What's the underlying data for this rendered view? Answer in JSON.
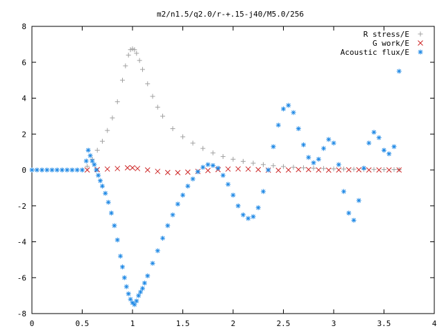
{
  "chart_data": {
    "type": "scatter",
    "title": "m2/n1.5/q2.0/r-+.15-j40/M5.0/256",
    "xlabel": "",
    "ylabel": "",
    "xlim": [
      0,
      4
    ],
    "ylim": [
      -8,
      8
    ],
    "x_ticks": [
      "0",
      "0.5",
      "1",
      "1.5",
      "2",
      "2.5",
      "3",
      "3.5",
      "4"
    ],
    "y_ticks": [
      "8",
      "6",
      "4",
      "2",
      "0",
      "-2",
      "-4",
      "-6",
      "-8"
    ],
    "grid": false,
    "legend_position": "top-right",
    "series": [
      {
        "name": "R stress/E",
        "marker": "+",
        "color": "#a0a0a0",
        "x": [
          0.55,
          0.6,
          0.65,
          0.7,
          0.75,
          0.8,
          0.85,
          0.9,
          0.93,
          0.96,
          0.98,
          1.0,
          1.02,
          1.04,
          1.07,
          1.1,
          1.15,
          1.2,
          1.25,
          1.3,
          1.4,
          1.5,
          1.6,
          1.7,
          1.8,
          1.9,
          2.0,
          2.1,
          2.2,
          2.3,
          2.4,
          2.5,
          2.6,
          2.7,
          2.8,
          2.9,
          3.0,
          3.1,
          3.2,
          3.3,
          3.4,
          3.5,
          3.6,
          3.65
        ],
        "y": [
          0.2,
          0.6,
          1.1,
          1.6,
          2.2,
          2.9,
          3.8,
          5.0,
          5.8,
          6.4,
          6.7,
          6.75,
          6.7,
          6.5,
          6.1,
          5.6,
          4.8,
          4.1,
          3.5,
          3.0,
          2.3,
          1.85,
          1.5,
          1.2,
          0.95,
          0.75,
          0.6,
          0.48,
          0.38,
          0.3,
          0.24,
          0.19,
          0.15,
          0.12,
          0.1,
          0.08,
          0.06,
          0.05,
          0.04,
          0.03,
          0.03,
          0.02,
          0.02,
          0.02
        ]
      },
      {
        "name": "G work/E",
        "marker": "x",
        "color": "#cc2222",
        "x": [
          0.55,
          0.65,
          0.75,
          0.85,
          0.95,
          1.0,
          1.05,
          1.15,
          1.25,
          1.35,
          1.45,
          1.55,
          1.65,
          1.75,
          1.85,
          1.95,
          2.05,
          2.15,
          2.25,
          2.35,
          2.45,
          2.55,
          2.65,
          2.75,
          2.85,
          2.95,
          3.05,
          3.15,
          3.25,
          3.35,
          3.45,
          3.55,
          3.65
        ],
        "y": [
          0.0,
          0.02,
          0.05,
          0.08,
          0.12,
          0.12,
          0.08,
          0.0,
          -0.08,
          -0.14,
          -0.15,
          -0.12,
          -0.08,
          -0.03,
          0.02,
          0.05,
          0.06,
          0.05,
          0.02,
          -0.01,
          -0.02,
          0.0,
          0.02,
          0.02,
          0.0,
          -0.01,
          0.0,
          0.01,
          0.01,
          0.0,
          0.0,
          0.0,
          0.0
        ]
      },
      {
        "name": "Acoustic flux/E",
        "marker": "*",
        "color": "#1e88e5",
        "x": [
          0.0,
          0.05,
          0.1,
          0.15,
          0.2,
          0.25,
          0.3,
          0.35,
          0.4,
          0.45,
          0.5,
          0.54,
          0.56,
          0.58,
          0.6,
          0.62,
          0.64,
          0.66,
          0.68,
          0.7,
          0.73,
          0.76,
          0.79,
          0.82,
          0.85,
          0.88,
          0.9,
          0.92,
          0.94,
          0.96,
          0.98,
          1.0,
          1.02,
          1.04,
          1.06,
          1.08,
          1.1,
          1.12,
          1.15,
          1.2,
          1.25,
          1.3,
          1.35,
          1.4,
          1.45,
          1.5,
          1.55,
          1.6,
          1.65,
          1.7,
          1.75,
          1.8,
          1.85,
          1.9,
          1.95,
          2.0,
          2.05,
          2.1,
          2.15,
          2.2,
          2.25,
          2.3,
          2.35,
          2.4,
          2.45,
          2.5,
          2.55,
          2.6,
          2.65,
          2.7,
          2.75,
          2.8,
          2.85,
          2.9,
          2.95,
          3.0,
          3.05,
          3.1,
          3.15,
          3.2,
          3.25,
          3.3,
          3.35,
          3.4,
          3.45,
          3.5,
          3.55,
          3.6,
          3.65
        ],
        "y": [
          0.0,
          0.0,
          0.0,
          0.0,
          0.0,
          0.0,
          0.0,
          0.0,
          0.0,
          0.0,
          0.0,
          0.5,
          1.1,
          0.8,
          0.5,
          0.3,
          0.0,
          -0.3,
          -0.6,
          -0.9,
          -1.3,
          -1.8,
          -2.4,
          -3.1,
          -3.9,
          -4.8,
          -5.4,
          -6.0,
          -6.5,
          -6.9,
          -7.2,
          -7.4,
          -7.5,
          -7.3,
          -7.0,
          -6.8,
          -6.6,
          -6.3,
          -5.9,
          -5.2,
          -4.5,
          -3.8,
          -3.1,
          -2.5,
          -1.9,
          -1.4,
          -0.9,
          -0.5,
          -0.1,
          0.15,
          0.3,
          0.25,
          0.1,
          -0.3,
          -0.8,
          -1.4,
          -2.0,
          -2.5,
          -2.7,
          -2.6,
          -2.1,
          -1.2,
          0.0,
          1.3,
          2.5,
          3.4,
          3.6,
          3.2,
          2.3,
          1.4,
          0.7,
          0.4,
          0.6,
          1.2,
          1.7,
          1.5,
          0.3,
          -1.2,
          -2.4,
          -2.8,
          -1.7,
          0.1,
          1.5,
          2.1,
          1.8,
          1.1,
          0.9,
          1.3,
          5.5
        ]
      }
    ]
  }
}
